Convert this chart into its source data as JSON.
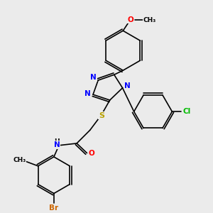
{
  "background_color": "#ebebeb",
  "atom_colors": {
    "N": "#0000ff",
    "O": "#ff0000",
    "S": "#b8a000",
    "Cl": "#00bb00",
    "Br": "#cc6600",
    "C": "#000000",
    "H": "#000000"
  },
  "bond_color": "#000000",
  "lw": 1.2
}
